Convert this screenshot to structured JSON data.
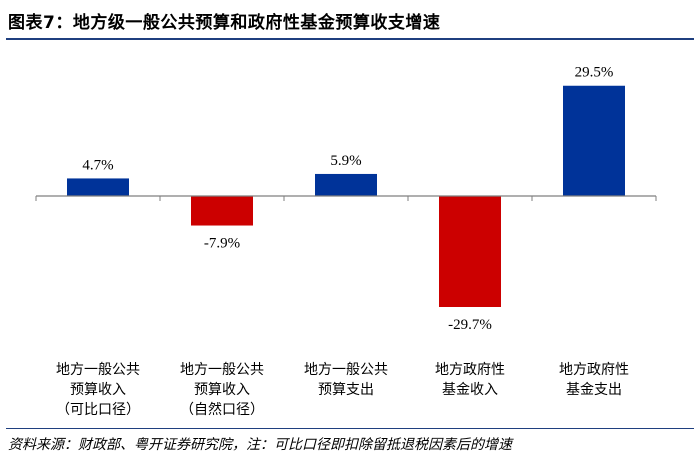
{
  "title": "图表7：地方级一般公共预算和政府性基金预算收支增速",
  "source": "资料来源：财政部、粤开证券研究院，注：可比口径即扣除留抵退税因素后的增速",
  "colors": {
    "positive": "#003399",
    "negative": "#cc0000",
    "axis": "#7f7f7f",
    "rule": "#1f3f7f"
  },
  "chart_data": {
    "type": "bar",
    "title": "地方级一般公共预算和政府性基金预算收支增速",
    "xlabel": "",
    "ylabel": "",
    "ylim": [
      -35,
      35
    ],
    "grid": false,
    "legend": "none",
    "categories": [
      [
        "地方一般公共",
        "预算收入",
        "（可比口径）"
      ],
      [
        "地方一般公共",
        "预算收入",
        "（自然口径）"
      ],
      [
        "地方一般公共",
        "预算支出"
      ],
      [
        "地方政府性",
        "基金收入"
      ],
      [
        "地方政府性",
        "基金支出"
      ]
    ],
    "values": [
      4.7,
      -7.9,
      5.9,
      -29.7,
      29.5
    ],
    "value_labels": [
      "4.7%",
      "-7.9%",
      "5.9%",
      "-29.7%",
      "29.5%"
    ]
  }
}
